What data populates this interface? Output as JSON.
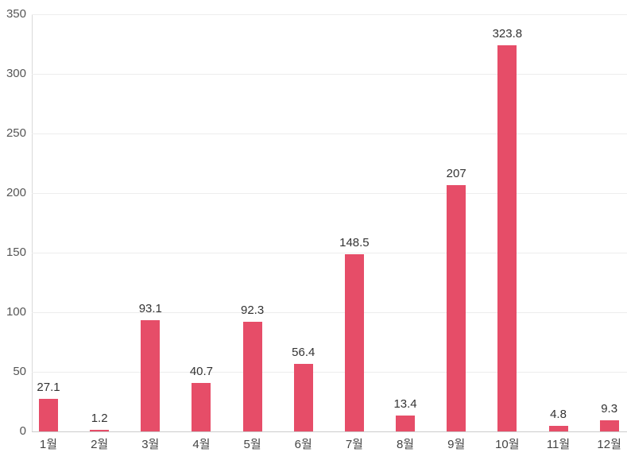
{
  "chart_data": {
    "type": "bar",
    "categories": [
      "1월",
      "2월",
      "3월",
      "4월",
      "5월",
      "6월",
      "7월",
      "8월",
      "9월",
      "10월",
      "11월",
      "12월"
    ],
    "values": [
      27.1,
      1.2,
      93.1,
      40.7,
      92.3,
      56.4,
      148.5,
      13.4,
      207,
      323.8,
      4.8,
      9.3
    ],
    "title": "",
    "xlabel": "",
    "ylabel": "",
    "ylim": [
      0,
      350
    ],
    "yticks": [
      0,
      50,
      100,
      150,
      200,
      250,
      300,
      350
    ],
    "grid": true,
    "legend": false,
    "value_labels_shown": true
  },
  "colors": {
    "bar": "#e64d68",
    "gridline": "#ededed",
    "y_axis_line": "#d9d9d9",
    "x_axis_line": "#cccccc",
    "tick_text": "#555555",
    "value_text": "#333333",
    "category_text": "#444444",
    "background": "#ffffff"
  }
}
